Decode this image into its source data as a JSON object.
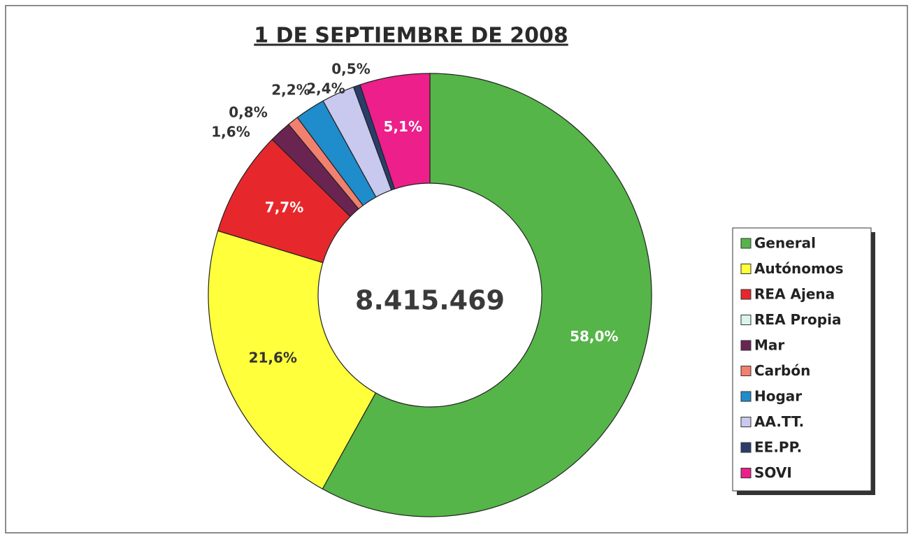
{
  "chart_data": {
    "type": "donut",
    "title": "1 DE SEPTIEMBRE DE 2008",
    "center_label": "8.415.469",
    "categories": [
      "General",
      "Autónomos",
      "REA Ajena",
      "REA Propia",
      "Mar",
      "Carbón",
      "Hogar",
      "AA.TT.",
      "EE.PP.",
      "SOVI"
    ],
    "values": [
      58.0,
      21.6,
      7.7,
      0,
      1.6,
      0.8,
      2.2,
      2.4,
      0.5,
      5.1
    ],
    "value_labels": [
      "58,0%",
      "21,6%",
      "7,7%",
      null,
      "1,6%",
      "0,8%",
      "2,2%",
      "2,4%",
      "0,5%",
      "5,1%"
    ],
    "colors": [
      "#55b548",
      "#ffff3c",
      "#e6282c",
      "#d8f5ec",
      "#6a2452",
      "#f2806e",
      "#1f8ccb",
      "#c9c9ef",
      "#2b3d6b",
      "#ec1f8b"
    ],
    "legend": "right"
  }
}
